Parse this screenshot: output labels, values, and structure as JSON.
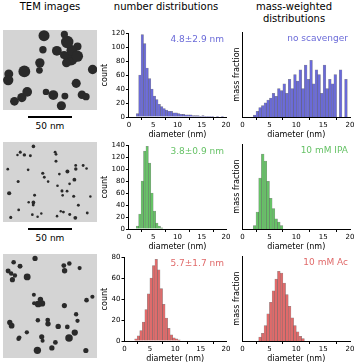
{
  "headers": [
    "TEM images",
    "number distributions",
    "mass-weighted distributions"
  ],
  "images": [
    {
      "scale_bar": "50 nm"
    },
    {
      "scale_bar": "50 nm"
    },
    {
      "scale_bar": null
    }
  ],
  "chart_data": [
    {
      "type": "histogram",
      "annotation": "4.8±2.9 nm",
      "xlabel": "diameter (nm)",
      "ylabel": "count",
      "color": "#6a6ad8",
      "bins": [
        0,
        0.5,
        1,
        1.5,
        2,
        2.5,
        3,
        3.5,
        4,
        4.5,
        5,
        5.5,
        6,
        6.5,
        7,
        7.5,
        8,
        8.5,
        9,
        9.5,
        10,
        10.5,
        11,
        11.5,
        12,
        12.5,
        13,
        13.5,
        14,
        14.5,
        15,
        15.5,
        16,
        16.5,
        17,
        17.5,
        18,
        18.5,
        19,
        19.5,
        20
      ],
      "values": [
        0,
        0,
        0,
        5,
        60,
        118,
        105,
        70,
        55,
        40,
        30,
        25,
        18,
        15,
        12,
        10,
        8,
        8,
        6,
        6,
        5,
        4,
        4,
        3,
        3,
        3,
        2,
        2,
        2,
        1,
        2,
        1,
        1,
        1,
        1,
        0,
        1,
        0,
        1,
        0
      ],
      "xlim": [
        0,
        20
      ],
      "xticks": [
        0,
        5,
        10,
        15,
        20
      ],
      "ylim": [
        0,
        120
      ],
      "yticks": [
        0,
        20,
        40,
        60,
        80,
        100,
        120
      ],
      "grid": false
    },
    {
      "type": "histogram",
      "annotation": "no scavenger",
      "xlabel": "diameter (nm)",
      "ylabel": "mass fraction",
      "color": "#6a6ad8",
      "bins": [
        0,
        0.5,
        1,
        1.5,
        2,
        2.5,
        3,
        3.5,
        4,
        4.5,
        5,
        5.5,
        6,
        6.5,
        7,
        7.5,
        8,
        8.5,
        9,
        9.5,
        10,
        10.5,
        11,
        11.5,
        12,
        12.5,
        13,
        13.5,
        14,
        14.5,
        15,
        15.5,
        16,
        16.5,
        17,
        17.5,
        18,
        18.5,
        19,
        19.5,
        20
      ],
      "values": [
        0,
        0,
        0,
        0,
        0.002,
        0.006,
        0.01,
        0.012,
        0.015,
        0.018,
        0.02,
        0.025,
        0.022,
        0.03,
        0.028,
        0.035,
        0.025,
        0.04,
        0.03,
        0.045,
        0.038,
        0.05,
        0.03,
        0.055,
        0.04,
        0.06,
        0.035,
        0.05,
        0.045,
        0.025,
        0.055,
        0.03,
        0.04,
        0.035,
        0.045,
        0,
        0.05,
        0,
        0.04,
        0
      ],
      "xlim": [
        0,
        20
      ],
      "xticks": [
        0,
        5,
        10,
        15,
        20
      ],
      "ylim": [
        0,
        0.09
      ],
      "tick_labels": "x",
      "grid": false
    },
    {
      "type": "histogram",
      "annotation": "3.8±0.9 nm",
      "xlabel": "diameter (nm)",
      "ylabel": "count",
      "color": "#66c266",
      "bins": [
        0,
        0.5,
        1,
        1.5,
        2,
        2.5,
        3,
        3.5,
        4,
        4.5,
        5,
        5.5,
        6,
        6.5,
        7,
        7.5,
        8,
        8.5,
        9,
        9.5,
        10,
        10.5,
        11,
        11.5,
        12,
        12.5,
        13,
        13.5,
        14,
        14.5,
        15,
        15.5,
        16,
        16.5,
        17,
        17.5,
        18,
        18.5,
        19,
        19.5,
        20
      ],
      "values": [
        0,
        0,
        0,
        5,
        25,
        80,
        130,
        138,
        110,
        60,
        30,
        10,
        5,
        2,
        0,
        0,
        0,
        0,
        0,
        0,
        0,
        0,
        0,
        0,
        0,
        0,
        0,
        0,
        0,
        0,
        0,
        0,
        0,
        0,
        0,
        0,
        0,
        0,
        0,
        0
      ],
      "xlim": [
        0,
        20
      ],
      "xticks": [
        0,
        5,
        10,
        15,
        20
      ],
      "ylim": [
        0,
        140
      ],
      "yticks": [
        0,
        20,
        40,
        60,
        80,
        100,
        120,
        140
      ],
      "grid": false
    },
    {
      "type": "histogram",
      "annotation": "10 mM IPA",
      "xlabel": "diameter (nm)",
      "ylabel": "mass fraction",
      "color": "#66c266",
      "bins": [
        0,
        0.5,
        1,
        1.5,
        2,
        2.5,
        3,
        3.5,
        4,
        4.5,
        5,
        5.5,
        6,
        6.5,
        7,
        7.5,
        8,
        8.5,
        9,
        9.5,
        10,
        10.5,
        11,
        11.5,
        12,
        12.5,
        13,
        13.5,
        14,
        14.5,
        15,
        15.5,
        16,
        16.5,
        17,
        17.5,
        18,
        18.5,
        19,
        19.5,
        20
      ],
      "values": [
        0,
        0,
        0,
        0,
        0.01,
        0.05,
        0.15,
        0.22,
        0.2,
        0.14,
        0.09,
        0.06,
        0.03,
        0.02,
        0.01,
        0,
        0,
        0,
        0,
        0,
        0,
        0,
        0,
        0,
        0,
        0,
        0,
        0,
        0,
        0,
        0,
        0,
        0,
        0,
        0,
        0,
        0,
        0,
        0,
        0
      ],
      "xlim": [
        0,
        20
      ],
      "xticks": [
        0,
        5,
        10,
        15,
        20
      ],
      "ylim": [
        0,
        0.25
      ],
      "tick_labels": "x",
      "grid": false
    },
    {
      "type": "histogram",
      "annotation": "5.7±1.7 nm",
      "xlabel": "diameter (nm)",
      "ylabel": "count",
      "color": "#e06a6a",
      "bins": [
        0,
        0.5,
        1,
        1.5,
        2,
        2.5,
        3,
        3.5,
        4,
        4.5,
        5,
        5.5,
        6,
        6.5,
        7,
        7.5,
        8,
        8.5,
        9,
        9.5,
        10,
        10.5,
        11,
        11.5,
        12,
        12.5,
        13,
        13.5,
        14,
        14.5,
        15,
        15.5,
        16,
        16.5,
        17,
        17.5,
        18,
        18.5,
        19,
        19.5,
        20
      ],
      "values": [
        0,
        0,
        0,
        0,
        2,
        5,
        10,
        18,
        30,
        45,
        60,
        72,
        78,
        68,
        50,
        35,
        22,
        12,
        6,
        3,
        2,
        1,
        0,
        0,
        0,
        0,
        0,
        0,
        0,
        0,
        0,
        0,
        0,
        0,
        0,
        0,
        0,
        0,
        0,
        0
      ],
      "xlim": [
        0,
        20
      ],
      "xticks": [
        0,
        5,
        10,
        15,
        20
      ],
      "ylim": [
        0,
        80
      ],
      "yticks": [
        0,
        20,
        40,
        60,
        80
      ],
      "grid": false
    },
    {
      "type": "histogram",
      "annotation": "10 mM Ac",
      "xlabel": "diameter (nm)",
      "ylabel": "mass fraction",
      "color": "#e06a6a",
      "bins": [
        0,
        0.5,
        1,
        1.5,
        2,
        2.5,
        3,
        3.5,
        4,
        4.5,
        5,
        5.5,
        6,
        6.5,
        7,
        7.5,
        8,
        8.5,
        9,
        9.5,
        10,
        10.5,
        11,
        11.5,
        12,
        12.5,
        13,
        13.5,
        14,
        14.5,
        15,
        15.5,
        16,
        16.5,
        17,
        17.5,
        18,
        18.5,
        19,
        19.5,
        20
      ],
      "values": [
        0,
        0,
        0,
        0,
        0,
        0,
        0.005,
        0.01,
        0.02,
        0.035,
        0.05,
        0.065,
        0.08,
        0.09,
        0.088,
        0.075,
        0.06,
        0.045,
        0.03,
        0.02,
        0.012,
        0.006,
        0.003,
        0,
        0,
        0,
        0,
        0,
        0,
        0,
        0,
        0,
        0,
        0,
        0,
        0,
        0,
        0,
        0,
        0
      ],
      "xlim": [
        0,
        20
      ],
      "xticks": [
        0,
        5,
        10,
        15,
        20
      ],
      "ylim": [
        0,
        0.11
      ],
      "tick_labels": "x",
      "grid": false
    }
  ]
}
